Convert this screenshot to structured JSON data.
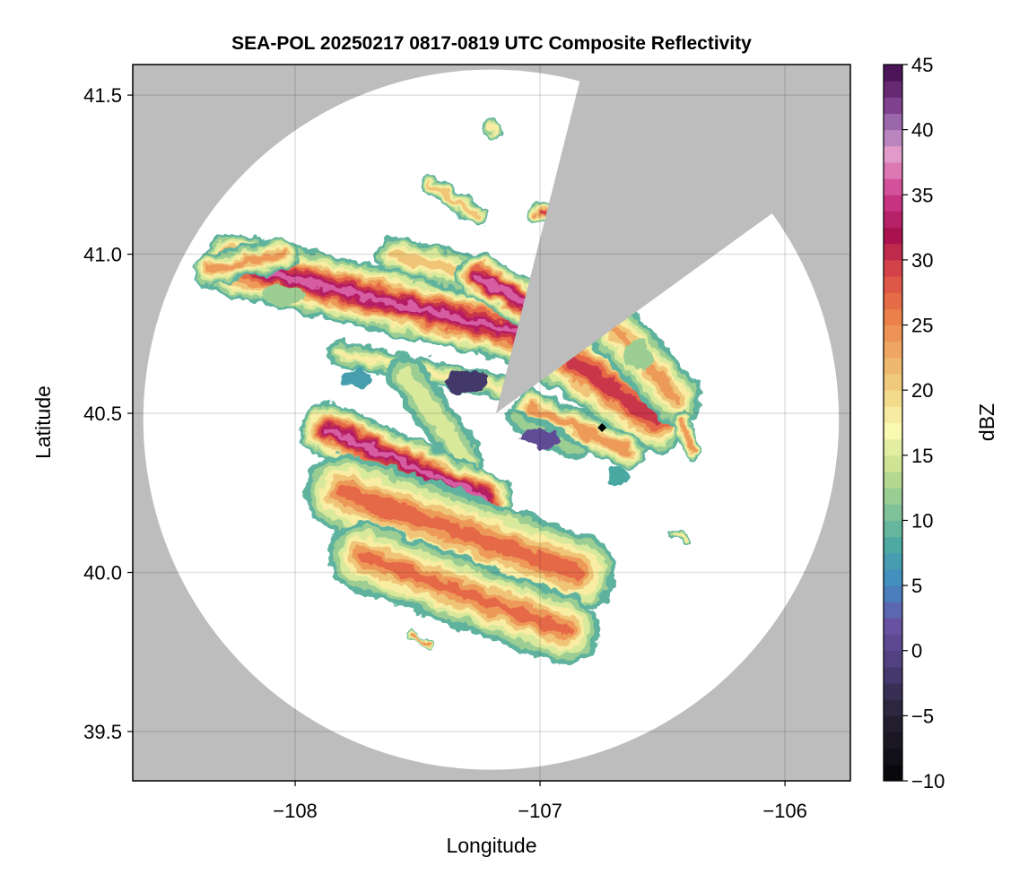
{
  "chart_data": {
    "type": "heatmap",
    "title": "SEA-POL 20250217 0817-0819 UTC Composite Reflectivity",
    "xlabel": "Longitude",
    "ylabel": "Latitude",
    "xlim": [
      -108.663,
      -105.733
    ],
    "ylim": [
      39.345,
      41.596
    ],
    "xticks": [
      -108,
      -107,
      -106
    ],
    "xtick_labels": [
      "−108",
      "−107",
      "−106"
    ],
    "yticks": [
      39.5,
      40.0,
      40.5,
      41.0,
      41.5
    ],
    "ytick_labels": [
      "39.5",
      "40.0",
      "40.5",
      "41.0",
      "41.5"
    ],
    "grid": true,
    "background_color": "#bdbdbd",
    "radar": {
      "lon": -107.18,
      "lat": 40.5,
      "coverage_center_lon": -107.2,
      "coverage_center_lat": 40.48,
      "range_lon_deg": 1.42,
      "range_lat_deg": 1.1,
      "blocked_sector_edges": [
        {
          "lon": -106.842,
          "lat": 41.531
        },
        {
          "lon": -106.062,
          "lat": 41.123
        }
      ]
    },
    "marker": {
      "lon": -106.747,
      "lat": 40.455,
      "shape": "diamond",
      "color": "#000000"
    },
    "colorbar": {
      "label": "dBZ",
      "range": [
        -10,
        45
      ],
      "step": 1.25,
      "ticks": [
        -10,
        -5,
        0,
        5,
        10,
        15,
        20,
        25,
        30,
        35,
        40,
        45
      ],
      "tick_labels": [
        "−10",
        "−5",
        "0",
        "5",
        "10",
        "15",
        "20",
        "25",
        "30",
        "35",
        "40",
        "45"
      ],
      "stops": [
        {
          "v": -10,
          "c": "#050507"
        },
        {
          "v": -5,
          "c": "#262133"
        },
        {
          "v": -1,
          "c": "#4d3f7c"
        },
        {
          "v": 2,
          "c": "#6a52a3"
        },
        {
          "v": 5,
          "c": "#4189c4"
        },
        {
          "v": 8,
          "c": "#4aa8a2"
        },
        {
          "v": 11,
          "c": "#86c596"
        },
        {
          "v": 14,
          "c": "#c8e08e"
        },
        {
          "v": 17,
          "c": "#fbfab4"
        },
        {
          "v": 20,
          "c": "#f1d382"
        },
        {
          "v": 23,
          "c": "#eea863"
        },
        {
          "v": 26,
          "c": "#ec7a46"
        },
        {
          "v": 29,
          "c": "#d94848"
        },
        {
          "v": 32,
          "c": "#a8104f"
        },
        {
          "v": 35,
          "c": "#ce3d8e"
        },
        {
          "v": 38,
          "c": "#e59ccb"
        },
        {
          "v": 40,
          "c": "#a77ab8"
        },
        {
          "v": 42,
          "c": "#7d3d8c"
        },
        {
          "v": 45,
          "c": "#3f0a4a"
        }
      ]
    },
    "echo_cells": [
      {
        "lon1": -108.253,
        "lat1": 40.968,
        "lon2": -107.099,
        "lat2": 40.756,
        "width": 0.2,
        "peak": 36
      },
      {
        "lon1": -107.6,
        "lat1": 41.0,
        "lon2": -107.25,
        "lat2": 40.93,
        "width": 0.12,
        "peak": 22
      },
      {
        "lon1": -107.25,
        "lat1": 40.93,
        "lon2": -107.05,
        "lat2": 40.84,
        "width": 0.14,
        "peak": 38
      },
      {
        "lon1": -108.35,
        "lat1": 40.95,
        "lon2": -108.05,
        "lat2": 41.0,
        "width": 0.1,
        "peak": 25
      },
      {
        "lon1": -106.93,
        "lat1": 40.7,
        "lon2": -106.53,
        "lat2": 40.48,
        "width": 0.22,
        "peak": 32
      },
      {
        "lon1": -106.71,
        "lat1": 40.78,
        "lon2": -106.45,
        "lat2": 40.55,
        "width": 0.17,
        "peak": 24
      },
      {
        "lon1": -107.04,
        "lat1": 40.52,
        "lon2": -106.64,
        "lat2": 40.38,
        "width": 0.11,
        "peak": 26
      },
      {
        "lon1": -107.82,
        "lat1": 40.69,
        "lon2": -107.16,
        "lat2": 40.58,
        "width": 0.08,
        "peak": 18
      },
      {
        "lon1": -107.55,
        "lat1": 40.62,
        "lon2": -107.3,
        "lat2": 40.35,
        "width": 0.12,
        "peak": 16
      },
      {
        "lon1": -107.87,
        "lat1": 40.45,
        "lon2": -107.22,
        "lat2": 40.23,
        "width": 0.17,
        "peak": 36
      },
      {
        "lon1": -107.8,
        "lat1": 40.25,
        "lon2": -106.85,
        "lat2": 40.0,
        "width": 0.25,
        "peak": 28
      },
      {
        "lon1": -107.72,
        "lat1": 40.05,
        "lon2": -106.9,
        "lat2": 39.82,
        "width": 0.22,
        "peak": 27
      },
      {
        "lon1": -107.1,
        "lat1": 40.48,
        "lon2": -106.85,
        "lat2": 40.38,
        "width": 0.07,
        "peak": 12
      },
      {
        "lon1": -107.45,
        "lat1": 41.22,
        "lon2": -107.25,
        "lat2": 41.12,
        "width": 0.06,
        "peak": 22
      },
      {
        "lon1": -107.0,
        "lat1": 41.13,
        "lon2": -106.93,
        "lat2": 41.11,
        "width": 0.06,
        "peak": 30
      },
      {
        "lon1": -107.2,
        "lat1": 41.41,
        "lon2": -107.18,
        "lat2": 41.38,
        "width": 0.04,
        "peak": 20
      },
      {
        "lon1": -106.42,
        "lat1": 40.48,
        "lon2": -106.38,
        "lat2": 40.38,
        "width": 0.06,
        "peak": 25
      },
      {
        "lon1": -106.45,
        "lat1": 40.12,
        "lon2": -106.4,
        "lat2": 40.1,
        "width": 0.03,
        "peak": 18
      },
      {
        "lon1": -107.52,
        "lat1": 39.8,
        "lon2": -107.45,
        "lat2": 39.78,
        "width": 0.03,
        "peak": 26
      }
    ],
    "flat_patches": [
      {
        "lon": -107.3,
        "lat": 40.6,
        "rx": 0.09,
        "ry": 0.035,
        "dbz": -2
      },
      {
        "lon": -107.0,
        "lat": 40.42,
        "rx": 0.08,
        "ry": 0.03,
        "dbz": 1
      },
      {
        "lon": -106.68,
        "lat": 40.3,
        "rx": 0.05,
        "ry": 0.03,
        "dbz": 8
      },
      {
        "lon": -107.75,
        "lat": 40.61,
        "rx": 0.06,
        "ry": 0.03,
        "dbz": 7
      },
      {
        "lon": -108.05,
        "lat": 40.87,
        "rx": 0.08,
        "ry": 0.03,
        "dbz": 12
      },
      {
        "lon": -106.6,
        "lat": 40.68,
        "rx": 0.06,
        "ry": 0.05,
        "dbz": 12
      }
    ]
  }
}
